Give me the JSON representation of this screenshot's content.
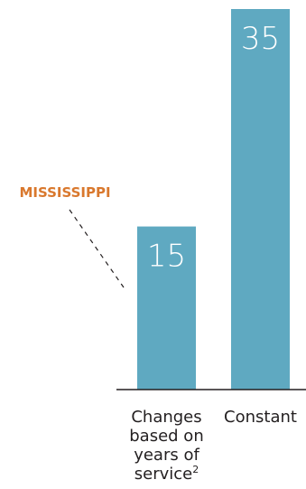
{
  "chart_data": {
    "type": "bar",
    "categories": [
      "Changes based on years of service",
      "Constant"
    ],
    "category_lines": [
      [
        "Changes",
        "based on",
        "years of",
        "service"
      ],
      [
        "Constant"
      ]
    ],
    "category_superscripts": [
      "2",
      ""
    ],
    "values": [
      15,
      35
    ],
    "ylim": [
      0,
      35
    ],
    "grid": false,
    "bar_color": "#5fa9c1",
    "axis_color": "#231f20",
    "annotation": {
      "text": "MISSISSIPPI",
      "target_category": 0,
      "color": "#d9782d"
    }
  }
}
